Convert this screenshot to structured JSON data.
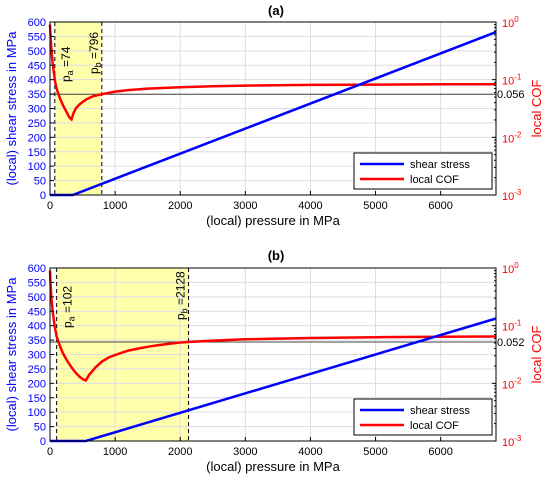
{
  "chart_data": [
    {
      "type": "line",
      "title": "(a)",
      "xlabel": "(local) pressure in MPa",
      "ylabel_left": "(local) shear stress in MPa",
      "ylabel_right": "local COF",
      "xlim": [
        0,
        6850
      ],
      "ylim_left": [
        0,
        600
      ],
      "ylim_right": [
        0.001,
        1
      ],
      "right_scale": "log",
      "grid": true,
      "legend_position": "bottom-right",
      "x_ticks": [
        0,
        1000,
        2000,
        3000,
        4000,
        5000,
        6000
      ],
      "y_ticks_left": [
        0,
        50,
        100,
        150,
        200,
        250,
        300,
        350,
        400,
        450,
        500,
        550,
        600
      ],
      "y_ticks_right": [
        {
          "value": 0.001,
          "base": "10",
          "exp": "-3"
        },
        {
          "value": 0.01,
          "base": "10",
          "exp": "-2"
        },
        {
          "value": 0.1,
          "base": "10",
          "exp": "-1"
        },
        {
          "value": 1,
          "base": "10",
          "exp": "0"
        }
      ],
      "shaded_region": [
        74,
        796
      ],
      "annotations": [
        {
          "name": "pa",
          "x": 74,
          "text_main": "p",
          "text_sub": "a",
          "text_value": " =74"
        },
        {
          "name": "pb",
          "x": 796,
          "text_main": "p",
          "text_sub": "b",
          "text_value": " =796"
        }
      ],
      "reference_cof": 0.056,
      "reference_label": "0.056",
      "series": [
        {
          "name": "shear stress",
          "axis": "left",
          "color": "#0000ff",
          "x": [
            0,
            74,
            350,
            6850
          ],
          "y": [
            0,
            0,
            0,
            565
          ]
        },
        {
          "name": "local COF",
          "axis": "right",
          "color": "#ff0000",
          "x": [
            0,
            8,
            20,
            40,
            60,
            80,
            110,
            150,
            200,
            250,
            300,
            330,
            360,
            400,
            450,
            500,
            550,
            600,
            650,
            700,
            750,
            800,
            900,
            1000,
            1200,
            1500,
            2000,
            2500,
            3000,
            4000,
            5000,
            6000,
            6850
          ],
          "y": [
            0.9,
            0.6,
            0.35,
            0.2,
            0.13,
            0.09,
            0.065,
            0.048,
            0.036,
            0.028,
            0.022,
            0.0205,
            0.026,
            0.032,
            0.037,
            0.041,
            0.045,
            0.048,
            0.051,
            0.053,
            0.0545,
            0.056,
            0.059,
            0.062,
            0.066,
            0.07,
            0.074,
            0.077,
            0.079,
            0.081,
            0.082,
            0.083,
            0.083
          ]
        }
      ]
    },
    {
      "type": "line",
      "title": "(b)",
      "xlabel": "(local) pressure in MPa",
      "ylabel_left": "(local) shear stress in MPa",
      "ylabel_right": "local COF",
      "xlim": [
        0,
        6850
      ],
      "ylim_left": [
        0,
        600
      ],
      "ylim_right": [
        0.001,
        1
      ],
      "right_scale": "log",
      "grid": true,
      "legend_position": "bottom-right",
      "x_ticks": [
        0,
        1000,
        2000,
        3000,
        4000,
        5000,
        6000
      ],
      "y_ticks_left": [
        0,
        50,
        100,
        150,
        200,
        250,
        300,
        350,
        400,
        450,
        500,
        550,
        600
      ],
      "y_ticks_right": [
        {
          "value": 0.001,
          "base": "10",
          "exp": "-3"
        },
        {
          "value": 0.01,
          "base": "10",
          "exp": "-2"
        },
        {
          "value": 0.1,
          "base": "10",
          "exp": "-1"
        },
        {
          "value": 1,
          "base": "10",
          "exp": "0"
        }
      ],
      "shaded_region": [
        102,
        2128
      ],
      "annotations": [
        {
          "name": "pa",
          "x": 102,
          "text_main": "p",
          "text_sub": "a",
          "text_value": " =102"
        },
        {
          "name": "pb",
          "x": 2128,
          "text_main": "p",
          "text_sub": "b",
          "text_value": " =2128"
        }
      ],
      "reference_cof": 0.052,
      "reference_label": "0.052",
      "series": [
        {
          "name": "shear stress",
          "axis": "left",
          "color": "#0000ff",
          "x": [
            0,
            102,
            550,
            6850
          ],
          "y": [
            0,
            0,
            0,
            425
          ]
        },
        {
          "name": "local COF",
          "axis": "right",
          "color": "#ff0000",
          "x": [
            0,
            8,
            20,
            40,
            70,
            102,
            150,
            200,
            260,
            330,
            400,
            470,
            520,
            550,
            600,
            700,
            800,
            900,
            1000,
            1200,
            1400,
            1600,
            1800,
            2000,
            2128,
            2500,
            3000,
            4000,
            5000,
            6000,
            6850
          ],
          "y": [
            0.9,
            0.55,
            0.32,
            0.18,
            0.1,
            0.065,
            0.045,
            0.033,
            0.025,
            0.019,
            0.015,
            0.0125,
            0.0115,
            0.0112,
            0.014,
            0.019,
            0.024,
            0.028,
            0.031,
            0.037,
            0.041,
            0.045,
            0.048,
            0.051,
            0.052,
            0.055,
            0.058,
            0.061,
            0.063,
            0.064,
            0.065
          ]
        }
      ]
    }
  ]
}
